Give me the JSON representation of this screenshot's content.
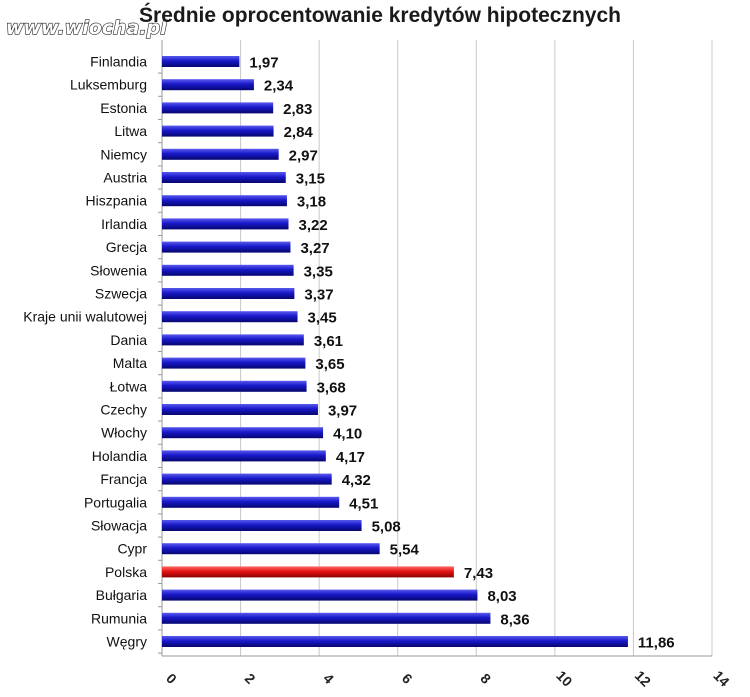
{
  "watermark": "www.wiocha.pl",
  "chart_data": {
    "type": "bar",
    "orientation": "horizontal",
    "title": "Średnie oprocentowanie kredytów hipotecznych",
    "xlim": [
      0,
      14
    ],
    "xticks": [
      "0",
      "2",
      "4",
      "6",
      "8",
      "10",
      "12",
      "14"
    ],
    "grid": true,
    "legend": "none",
    "categories": [
      "Finlandia",
      "Luksemburg",
      "Estonia",
      "Litwa",
      "Niemcy",
      "Austria",
      "Hiszpania",
      "Irlandia",
      "Grecja",
      "Słowenia",
      "Szwecja",
      "Kraje unii walutowej",
      "Dania",
      "Malta",
      "Łotwa",
      "Czechy",
      "Włochy",
      "Holandia",
      "Francja",
      "Portugalia",
      "Słowacja",
      "Cypr",
      "Polska",
      "Bułgaria",
      "Rumunia",
      "Węgry"
    ],
    "values": [
      1.97,
      2.34,
      2.83,
      2.84,
      2.97,
      3.15,
      3.18,
      3.22,
      3.27,
      3.35,
      3.37,
      3.45,
      3.61,
      3.65,
      3.68,
      3.97,
      4.1,
      4.17,
      4.32,
      4.51,
      5.08,
      5.54,
      7.43,
      8.03,
      8.36,
      11.86
    ],
    "value_labels": [
      "1,97",
      "2,34",
      "2,83",
      "2,84",
      "2,97",
      "3,15",
      "3,18",
      "3,22",
      "3,27",
      "3,35",
      "3,37",
      "3,45",
      "3,61",
      "3,65",
      "3,68",
      "3,97",
      "4,10",
      "4,17",
      "4,32",
      "4,51",
      "5,08",
      "5,54",
      "7,43",
      "8,03",
      "8,36",
      "11,86"
    ],
    "bar_color": "#1515b0",
    "highlight_category": "Polska",
    "highlight_color": "#e01010"
  }
}
